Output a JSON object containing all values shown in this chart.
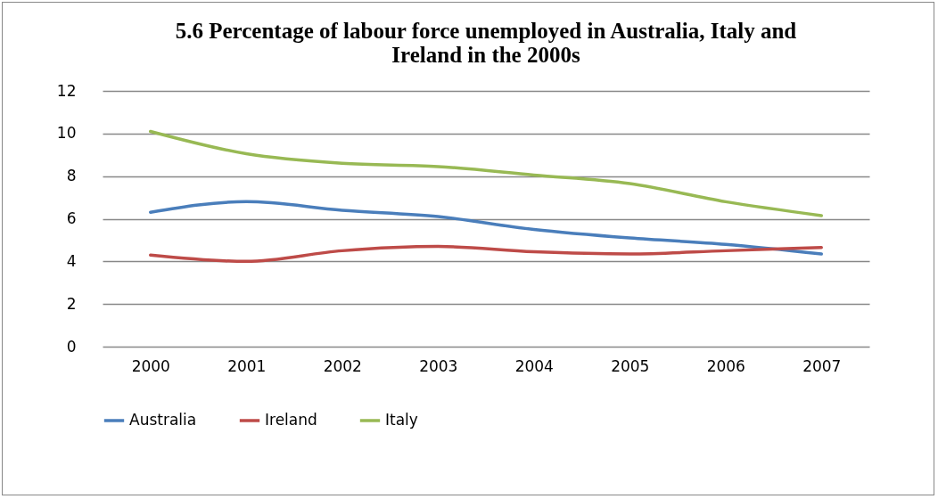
{
  "chart_data": {
    "type": "line",
    "title": "5.6 Percentage of labour force unemployed in Australia, Italy and Ireland in the 2000s",
    "categories": [
      "2000",
      "2001",
      "2002",
      "2003",
      "2004",
      "2005",
      "2006",
      "2007"
    ],
    "series": [
      {
        "name": "Australia",
        "color": "#4a7ebb",
        "values": [
          6.3,
          6.8,
          6.4,
          6.1,
          5.5,
          5.1,
          4.8,
          4.35
        ]
      },
      {
        "name": "Ireland",
        "color": "#be4b48",
        "values": [
          4.3,
          4.0,
          4.5,
          4.7,
          4.45,
          4.35,
          4.5,
          4.65
        ]
      },
      {
        "name": "Italy",
        "color": "#98b954",
        "values": [
          10.1,
          9.05,
          8.6,
          8.45,
          8.05,
          7.65,
          6.8,
          6.15
        ]
      }
    ],
    "ylim": [
      0,
      12
    ],
    "yticks": [
      0,
      2,
      4,
      6,
      8,
      10,
      12
    ],
    "grid": "y",
    "legend": "bottom",
    "marker": "none",
    "line_style": "solid"
  }
}
